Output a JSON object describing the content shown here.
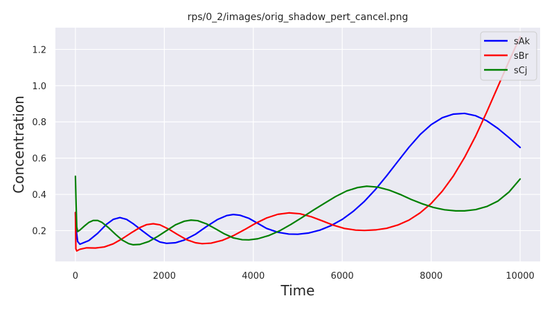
{
  "chart_data": {
    "type": "line",
    "title": "rps/0_2/images/orig_shadow_pert_cancel.png",
    "xlabel": "Time",
    "ylabel": "Concentration",
    "xlim": [
      -450,
      10450
    ],
    "ylim": [
      0.03,
      1.32
    ],
    "xticks": [
      0,
      2000,
      4000,
      6000,
      8000,
      10000
    ],
    "xtick_labels": [
      "0",
      "2000",
      "4000",
      "6000",
      "8000",
      "10000"
    ],
    "yticks": [
      0.2,
      0.4,
      0.6,
      0.8,
      1.0,
      1.2
    ],
    "ytick_labels": [
      "0.2",
      "0.4",
      "0.6",
      "0.8",
      "1.0",
      "1.2"
    ],
    "grid": true,
    "background": "#eaeaf2",
    "legend_position": "top-right",
    "series": [
      {
        "name": "sAk",
        "color": "#0000ff",
        "points": [
          [
            0,
            0.3
          ],
          [
            10,
            0.22
          ],
          [
            50,
            0.14
          ],
          [
            100,
            0.125
          ],
          [
            300,
            0.145
          ],
          [
            500,
            0.185
          ],
          [
            700,
            0.235
          ],
          [
            850,
            0.262
          ],
          [
            1000,
            0.272
          ],
          [
            1150,
            0.262
          ],
          [
            1300,
            0.238
          ],
          [
            1500,
            0.2
          ],
          [
            1700,
            0.163
          ],
          [
            1900,
            0.137
          ],
          [
            2050,
            0.13
          ],
          [
            2250,
            0.133
          ],
          [
            2450,
            0.148
          ],
          [
            2700,
            0.18
          ],
          [
            2950,
            0.223
          ],
          [
            3200,
            0.262
          ],
          [
            3400,
            0.283
          ],
          [
            3550,
            0.289
          ],
          [
            3700,
            0.285
          ],
          [
            3900,
            0.268
          ],
          [
            4100,
            0.24
          ],
          [
            4300,
            0.212
          ],
          [
            4550,
            0.191
          ],
          [
            4800,
            0.181
          ],
          [
            5000,
            0.18
          ],
          [
            5250,
            0.187
          ],
          [
            5500,
            0.203
          ],
          [
            5750,
            0.228
          ],
          [
            6000,
            0.262
          ],
          [
            6250,
            0.307
          ],
          [
            6500,
            0.362
          ],
          [
            6750,
            0.428
          ],
          [
            7000,
            0.503
          ],
          [
            7250,
            0.582
          ],
          [
            7500,
            0.66
          ],
          [
            7750,
            0.73
          ],
          [
            8000,
            0.785
          ],
          [
            8250,
            0.823
          ],
          [
            8500,
            0.843
          ],
          [
            8750,
            0.847
          ],
          [
            9000,
            0.834
          ],
          [
            9250,
            0.806
          ],
          [
            9500,
            0.764
          ],
          [
            9750,
            0.713
          ],
          [
            10000,
            0.659
          ]
        ]
      },
      {
        "name": "sBr",
        "color": "#ff0000",
        "points": [
          [
            0,
            0.3
          ],
          [
            10,
            0.1
          ],
          [
            30,
            0.088
          ],
          [
            100,
            0.097
          ],
          [
            250,
            0.105
          ],
          [
            450,
            0.104
          ],
          [
            650,
            0.11
          ],
          [
            850,
            0.127
          ],
          [
            1050,
            0.155
          ],
          [
            1250,
            0.187
          ],
          [
            1450,
            0.217
          ],
          [
            1600,
            0.233
          ],
          [
            1750,
            0.238
          ],
          [
            1900,
            0.232
          ],
          [
            2100,
            0.208
          ],
          [
            2300,
            0.178
          ],
          [
            2500,
            0.15
          ],
          [
            2700,
            0.133
          ],
          [
            2850,
            0.128
          ],
          [
            3050,
            0.131
          ],
          [
            3300,
            0.146
          ],
          [
            3550,
            0.172
          ],
          [
            3800,
            0.205
          ],
          [
            4050,
            0.24
          ],
          [
            4300,
            0.27
          ],
          [
            4550,
            0.29
          ],
          [
            4800,
            0.298
          ],
          [
            5050,
            0.293
          ],
          [
            5300,
            0.277
          ],
          [
            5550,
            0.254
          ],
          [
            5800,
            0.23
          ],
          [
            6050,
            0.212
          ],
          [
            6300,
            0.203
          ],
          [
            6500,
            0.201
          ],
          [
            6750,
            0.204
          ],
          [
            7000,
            0.213
          ],
          [
            7250,
            0.231
          ],
          [
            7500,
            0.258
          ],
          [
            7750,
            0.298
          ],
          [
            8000,
            0.35
          ],
          [
            8250,
            0.418
          ],
          [
            8500,
            0.502
          ],
          [
            8750,
            0.604
          ],
          [
            9000,
            0.722
          ],
          [
            9250,
            0.855
          ],
          [
            9500,
            0.995
          ],
          [
            9750,
            1.135
          ],
          [
            10000,
            1.27
          ]
        ]
      },
      {
        "name": "sCj",
        "color": "#008000",
        "points": [
          [
            0,
            0.5
          ],
          [
            5,
            0.45
          ],
          [
            15,
            0.35
          ],
          [
            30,
            0.22
          ],
          [
            50,
            0.195
          ],
          [
            100,
            0.203
          ],
          [
            200,
            0.225
          ],
          [
            300,
            0.245
          ],
          [
            400,
            0.256
          ],
          [
            500,
            0.256
          ],
          [
            600,
            0.245
          ],
          [
            750,
            0.215
          ],
          [
            900,
            0.18
          ],
          [
            1050,
            0.148
          ],
          [
            1200,
            0.128
          ],
          [
            1300,
            0.122
          ],
          [
            1450,
            0.124
          ],
          [
            1650,
            0.14
          ],
          [
            1850,
            0.168
          ],
          [
            2050,
            0.2
          ],
          [
            2250,
            0.232
          ],
          [
            2450,
            0.252
          ],
          [
            2600,
            0.258
          ],
          [
            2750,
            0.255
          ],
          [
            2950,
            0.237
          ],
          [
            3150,
            0.21
          ],
          [
            3350,
            0.182
          ],
          [
            3550,
            0.16
          ],
          [
            3750,
            0.15
          ],
          [
            3900,
            0.149
          ],
          [
            4100,
            0.155
          ],
          [
            4350,
            0.173
          ],
          [
            4600,
            0.2
          ],
          [
            4850,
            0.235
          ],
          [
            5100,
            0.273
          ],
          [
            5350,
            0.313
          ],
          [
            5600,
            0.351
          ],
          [
            5850,
            0.388
          ],
          [
            6100,
            0.419
          ],
          [
            6350,
            0.438
          ],
          [
            6550,
            0.445
          ],
          [
            6800,
            0.44
          ],
          [
            7050,
            0.424
          ],
          [
            7300,
            0.4
          ],
          [
            7550,
            0.372
          ],
          [
            7800,
            0.348
          ],
          [
            8050,
            0.328
          ],
          [
            8300,
            0.315
          ],
          [
            8550,
            0.309
          ],
          [
            8750,
            0.309
          ],
          [
            9000,
            0.316
          ],
          [
            9250,
            0.333
          ],
          [
            9500,
            0.363
          ],
          [
            9750,
            0.413
          ],
          [
            10000,
            0.485
          ]
        ]
      }
    ]
  }
}
